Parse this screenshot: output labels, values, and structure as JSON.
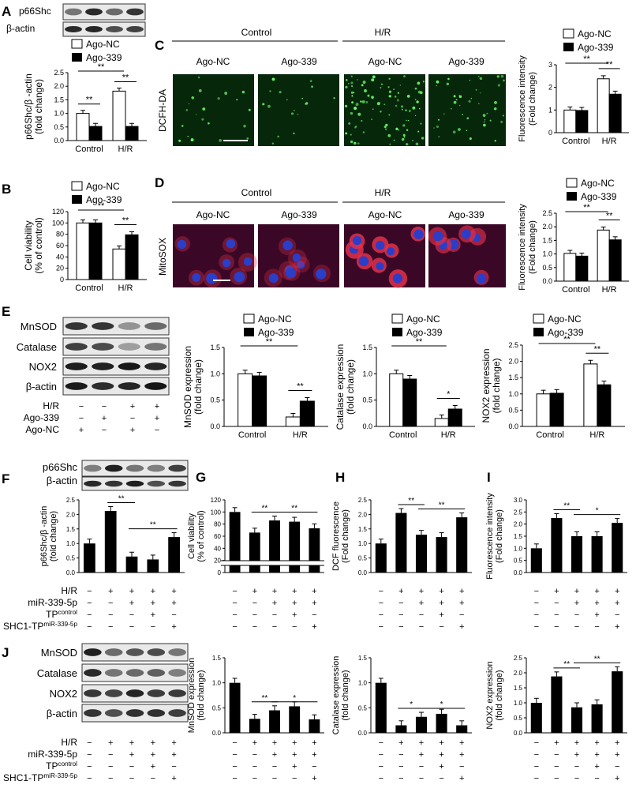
{
  "colors": {
    "black": "#000000",
    "white": "#ffffff",
    "dcf_bg": "#07270b",
    "dcf_dot": "#6dff6d",
    "mito_bg": "#3a0826",
    "mito_red": "#e0304a",
    "nucleus_blue": "#2a3ec9"
  },
  "legend": {
    "ago_nc": "Ago-NC",
    "ago_339": "Ago-339"
  },
  "treat": {
    "hr": "H/R",
    "ago339": "Ago-339",
    "agonc": "Ago-NC",
    "mir": "miR-339-5p",
    "tp_main": "TP",
    "tp_sup": "control",
    "shc_main": "SHC1-TP",
    "shc_sup": "miR-339-5p"
  },
  "panelA": {
    "label": "A",
    "blots": [
      "p66Shc",
      "β-actin"
    ],
    "ylabel": [
      "p66Shc/β -actin",
      "(fold change)"
    ],
    "chart_data": {
      "type": "bar",
      "categories": [
        "Control",
        "H/R"
      ],
      "series": [
        {
          "name": "Ago-NC",
          "values": [
            1.0,
            1.82
          ]
        },
        {
          "name": "Ago-339",
          "values": [
            0.52,
            0.52
          ]
        }
      ],
      "ylim": [
        0,
        2.5
      ],
      "yticks": [
        "0.0",
        "0.5",
        "1.0",
        "1.5",
        "2.0",
        "2.5"
      ],
      "sig": [
        "**",
        "**",
        "**"
      ]
    }
  },
  "panelB": {
    "label": "B",
    "ylabel": [
      "Cell viability",
      "(% of control)"
    ],
    "chart_data": {
      "type": "bar",
      "categories": [
        "Control",
        "H/R"
      ],
      "series": [
        {
          "name": "Ago-NC",
          "values": [
            100,
            54
          ]
        },
        {
          "name": "Ago-339",
          "values": [
            100,
            79
          ]
        }
      ],
      "ylim": [
        0,
        120
      ],
      "yticks": [
        "0",
        "20",
        "40",
        "60",
        "80",
        "100",
        "120"
      ],
      "sig": [
        "**",
        "**"
      ]
    }
  },
  "panelC": {
    "label": "C",
    "group1": "Control",
    "group2": "H/R",
    "sublabels": [
      "Ago-NC",
      "Ago-339",
      "Ago-NC",
      "Ago-339"
    ],
    "row_label": "DCFH-DA",
    "ylabel": [
      "Fluorescence intensity",
      "(Fold change)"
    ],
    "chart_data": {
      "type": "bar",
      "categories": [
        "Control",
        "H/R"
      ],
      "series": [
        {
          "name": "Ago-NC",
          "values": [
            1.0,
            2.38
          ]
        },
        {
          "name": "Ago-339",
          "values": [
            0.98,
            1.7
          ]
        }
      ],
      "ylim": [
        0,
        3
      ],
      "yticks": [
        "0",
        "1",
        "2",
        "3"
      ],
      "sig": [
        "**",
        "**"
      ]
    }
  },
  "panelD": {
    "label": "D",
    "group1": "Control",
    "group2": "H/R",
    "sublabels": [
      "Ago-NC",
      "Ago-339",
      "Ago-NC",
      "Ago-339"
    ],
    "row_label": "MitoSOX",
    "ylabel": [
      "Fluorescence intensity",
      "(Fold change)"
    ],
    "chart_data": {
      "type": "bar",
      "categories": [
        "Control",
        "H/R"
      ],
      "series": [
        {
          "name": "Ago-NC",
          "values": [
            1.02,
            1.88
          ]
        },
        {
          "name": "Ago-339",
          "values": [
            0.92,
            1.52
          ]
        }
      ],
      "ylim": [
        0,
        2.5
      ],
      "yticks": [
        "0.0",
        "0.5",
        "1.0",
        "1.5",
        "2.0",
        "2.5"
      ],
      "sig": [
        "**",
        "**"
      ]
    }
  },
  "panelE": {
    "label": "E",
    "blots": [
      "MnSOD",
      "Catalase",
      "NOX2",
      "β-actin"
    ],
    "signs": {
      "hr": [
        "−",
        "−",
        "+",
        "+"
      ],
      "ago339": [
        "−",
        "+",
        "−",
        "+"
      ],
      "agonc": [
        "+",
        "−",
        "+",
        "−"
      ]
    },
    "charts": [
      {
        "ylabel": [
          "MnSOD expression",
          "(fold change)"
        ],
        "chart_data": {
          "type": "bar",
          "categories": [
            "Control",
            "H/R"
          ],
          "series": [
            {
              "name": "Ago-NC",
              "values": [
                1.0,
                0.18
              ]
            },
            {
              "name": "Ago-339",
              "values": [
                0.96,
                0.48
              ]
            }
          ],
          "ylim": [
            0,
            1.5
          ],
          "yticks": [
            "0.0",
            "0.5",
            "1.0",
            "1.5"
          ],
          "sig": [
            "**",
            "**"
          ]
        }
      },
      {
        "ylabel": [
          "Catalase expression",
          "(fold change)"
        ],
        "chart_data": {
          "type": "bar",
          "categories": [
            "Control",
            "H/R"
          ],
          "series": [
            {
              "name": "Ago-NC",
              "values": [
                1.0,
                0.15
              ]
            },
            {
              "name": "Ago-339",
              "values": [
                0.9,
                0.33
              ]
            }
          ],
          "ylim": [
            0,
            1.5
          ],
          "yticks": [
            "0.0",
            "0.5",
            "1.0",
            "1.5"
          ],
          "sig": [
            "**",
            "*"
          ]
        }
      },
      {
        "ylabel": [
          "NOX2 expression",
          "(fold change)"
        ],
        "chart_data": {
          "type": "bar",
          "categories": [
            "Control",
            "H/R"
          ],
          "series": [
            {
              "name": "Ago-NC",
              "values": [
                1.0,
                1.92
              ]
            },
            {
              "name": "Ago-339",
              "values": [
                1.02,
                1.28
              ]
            }
          ],
          "ylim": [
            0,
            2.5
          ],
          "yticks": [
            "0.0",
            "0.5",
            "1.0",
            "1.5",
            "2.0",
            "2.5"
          ],
          "sig": [
            "**",
            "**"
          ]
        }
      }
    ]
  },
  "panelF": {
    "label": "F",
    "blots": [
      "p66Shc",
      "β-actin"
    ],
    "ylabel": [
      "p66Shc/β -actin",
      "(fold change)"
    ],
    "chart_data": {
      "type": "bar",
      "values": [
        1.0,
        2.12,
        0.55,
        0.45,
        1.22
      ],
      "ylim": [
        0,
        2.5
      ],
      "yticks": [
        "0.0",
        "0.5",
        "1.0",
        "1.5",
        "2.0",
        "2.5"
      ],
      "sig": [
        "**",
        "**"
      ]
    }
  },
  "panelG": {
    "label": "G",
    "ylabel": [
      "Cell viability",
      "(% of control)"
    ],
    "chart_data": {
      "type": "bar",
      "values": [
        100,
        66,
        86,
        84,
        73
      ],
      "ylim": [
        0,
        120
      ],
      "yticks": [
        "0",
        "20",
        "40",
        "60",
        "80",
        "100",
        "120"
      ],
      "sig": [
        "**",
        "**"
      ]
    }
  },
  "panelH": {
    "label": "H",
    "ylabel": [
      "DCF fluorescence",
      "(Fold change)"
    ],
    "chart_data": {
      "type": "bar",
      "values": [
        1.0,
        2.05,
        1.3,
        1.22,
        1.9
      ],
      "ylim": [
        0,
        2.5
      ],
      "yticks": [
        "0.0",
        "0.5",
        "1.0",
        "1.5",
        "2.0",
        "2.5"
      ],
      "sig": [
        "**",
        "**"
      ]
    }
  },
  "panelI": {
    "label": "I",
    "ylabel": [
      "Fluorescence intensity",
      "(Fold change)"
    ],
    "chart_data": {
      "type": "bar",
      "values": [
        1.0,
        2.25,
        1.5,
        1.5,
        2.05
      ],
      "ylim": [
        0,
        3
      ],
      "yticks": [
        "0.0",
        "0.5",
        "1.0",
        "1.5",
        "2.0",
        "2.5",
        "3.0"
      ],
      "sig": [
        "**",
        "*"
      ]
    }
  },
  "panelJ": {
    "label": "J",
    "blots": [
      "MnSOD",
      "Catalase",
      "NOX2",
      "β-actin"
    ],
    "charts": [
      {
        "ylabel": [
          "MnSOD expression",
          "(fold change)"
        ],
        "chart_data": {
          "type": "bar",
          "values": [
            1.0,
            0.28,
            0.45,
            0.53,
            0.27
          ],
          "ylim": [
            0,
            1.5
          ],
          "yticks": [
            "0.0",
            "0.5",
            "1.0",
            "1.5"
          ],
          "sig": [
            "**",
            "*"
          ]
        }
      },
      {
        "ylabel": [
          "Catalase expression",
          "(fold change)"
        ],
        "chart_data": {
          "type": "bar",
          "values": [
            1.0,
            0.15,
            0.32,
            0.38,
            0.15
          ],
          "ylim": [
            0,
            1.5
          ],
          "yticks": [
            "0.0",
            "0.5",
            "1.0",
            "1.5"
          ],
          "sig": [
            "*",
            "*"
          ]
        }
      },
      {
        "ylabel": [
          "NOX2 expression",
          "(fold change)"
        ],
        "chart_data": {
          "type": "bar",
          "values": [
            1.0,
            1.88,
            0.85,
            0.95,
            2.05
          ],
          "ylim": [
            0,
            2.5
          ],
          "yticks": [
            "0.0",
            "0.5",
            "1.0",
            "1.5",
            "2.0",
            "2.5"
          ],
          "sig": [
            "**",
            "**"
          ]
        }
      }
    ]
  },
  "five_signs": {
    "hr": [
      "−",
      "+",
      "+",
      "+",
      "+"
    ],
    "mir": [
      "−",
      "−",
      "+",
      "+",
      "+"
    ],
    "tp": [
      "−",
      "−",
      "−",
      "+",
      "−"
    ],
    "shc": [
      "−",
      "−",
      "−",
      "−",
      "+"
    ]
  }
}
